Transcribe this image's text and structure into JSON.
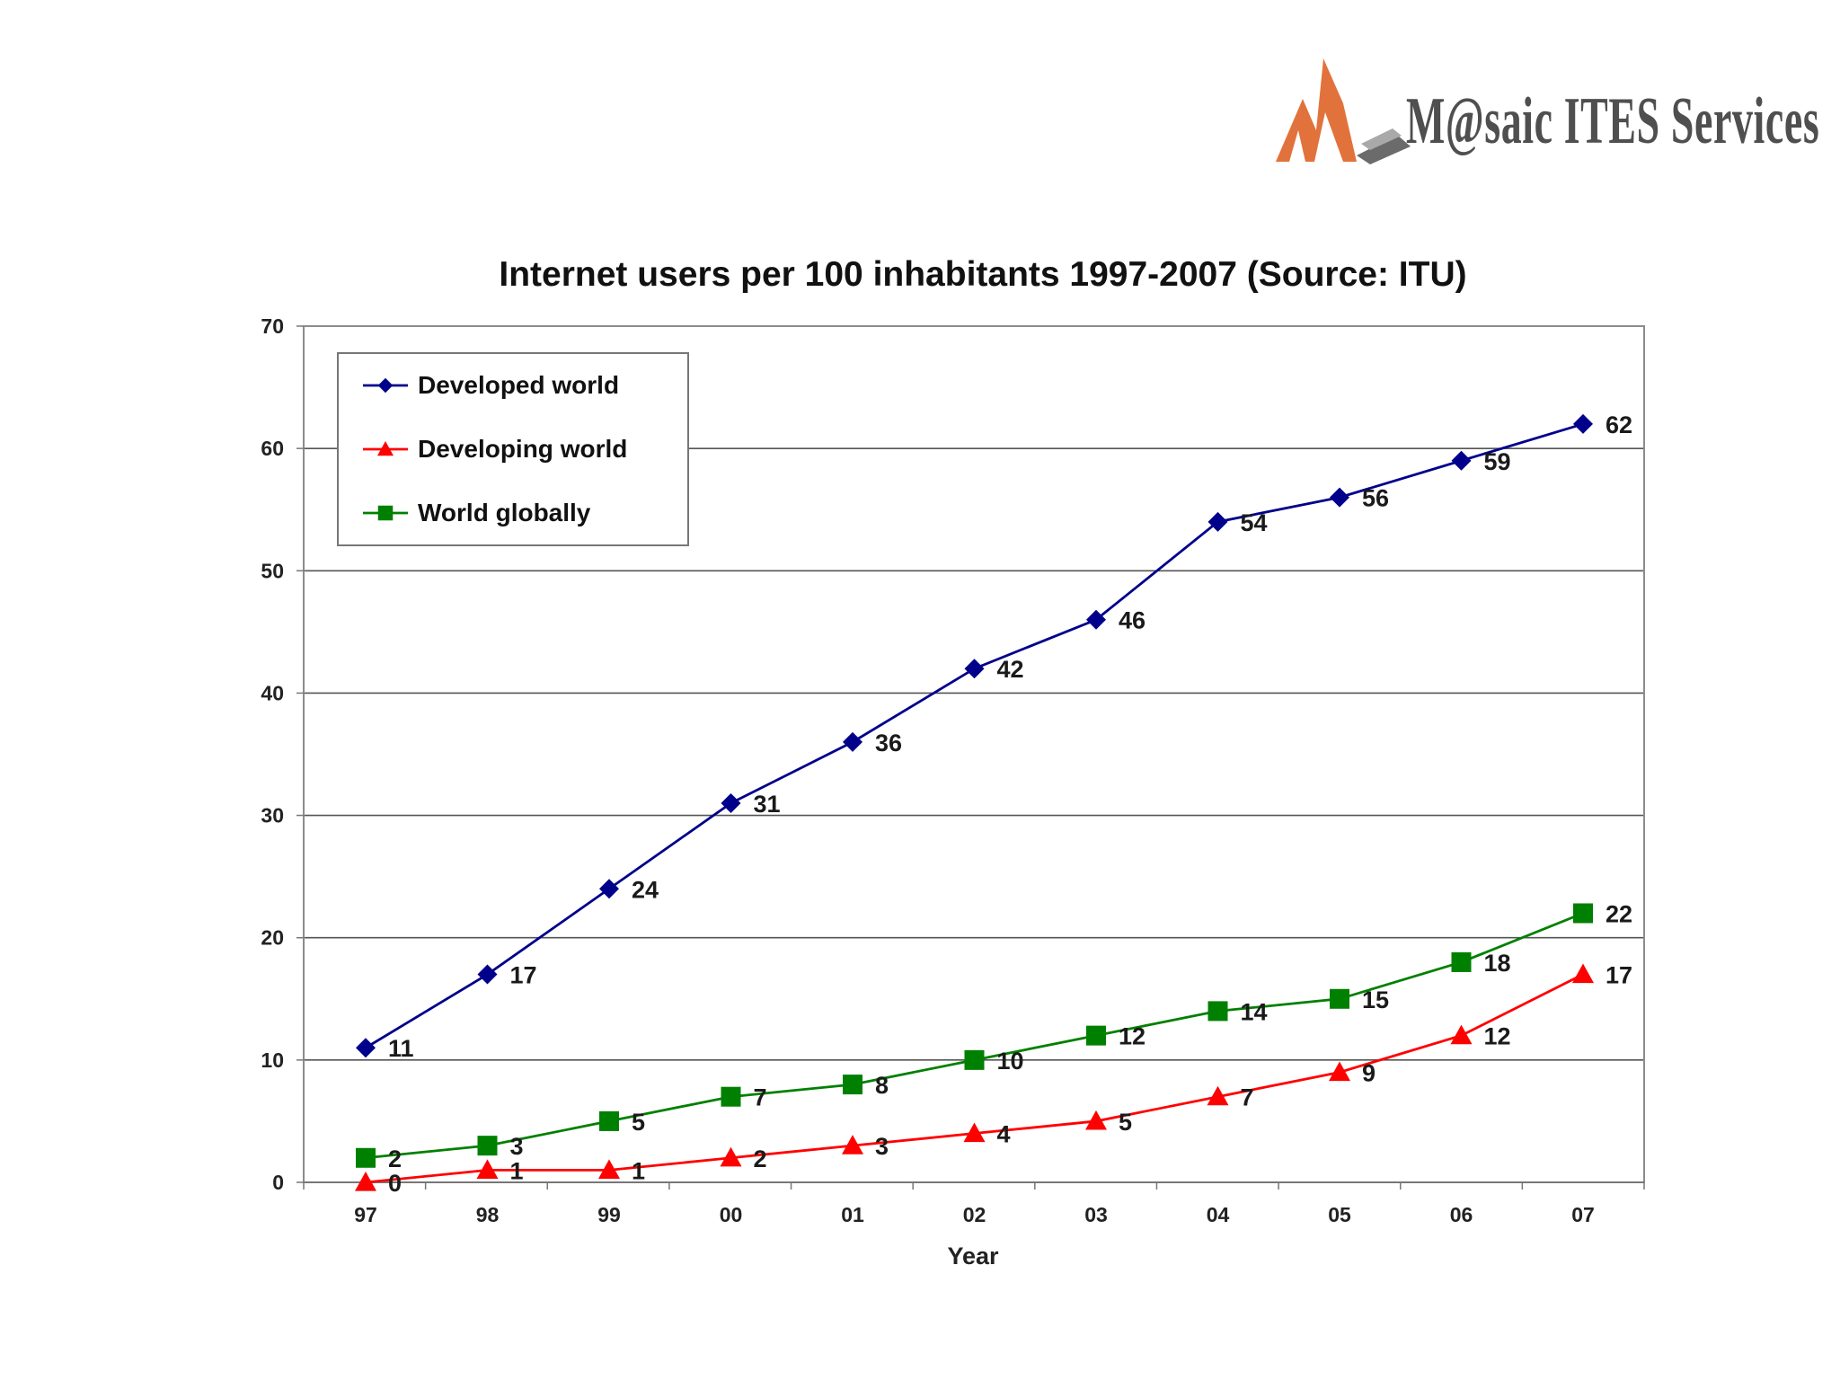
{
  "logo": {
    "text": "M@saic ITES Services",
    "icon": "mosaic-logo-icon",
    "colors": {
      "accent": "#e2723c",
      "text": "#4f4f4f"
    }
  },
  "chart_data": {
    "type": "line",
    "title": "Internet users per 100 inhabitants 1997-2007 (Source: ITU)",
    "xlabel": "Year",
    "ylabel": "",
    "categories": [
      "97",
      "98",
      "99",
      "00",
      "01",
      "02",
      "03",
      "04",
      "05",
      "06",
      "07"
    ],
    "ylim": [
      0,
      70
    ],
    "yticks": [
      0,
      10,
      20,
      30,
      40,
      50,
      60,
      70
    ],
    "grid": true,
    "legend_position": "top-left",
    "series": [
      {
        "name": "Developed world",
        "marker": "diamond",
        "color": "#00008b",
        "values": [
          11,
          17,
          24,
          31,
          36,
          42,
          46,
          54,
          56,
          59,
          62
        ]
      },
      {
        "name": "Developing world",
        "marker": "triangle",
        "color": "#ff0000",
        "values": [
          0,
          1,
          1,
          2,
          3,
          4,
          5,
          7,
          9,
          12,
          17
        ]
      },
      {
        "name": "World globally",
        "marker": "square",
        "color": "#008000",
        "values": [
          2,
          3,
          5,
          7,
          8,
          10,
          12,
          14,
          15,
          18,
          22
        ]
      }
    ]
  }
}
